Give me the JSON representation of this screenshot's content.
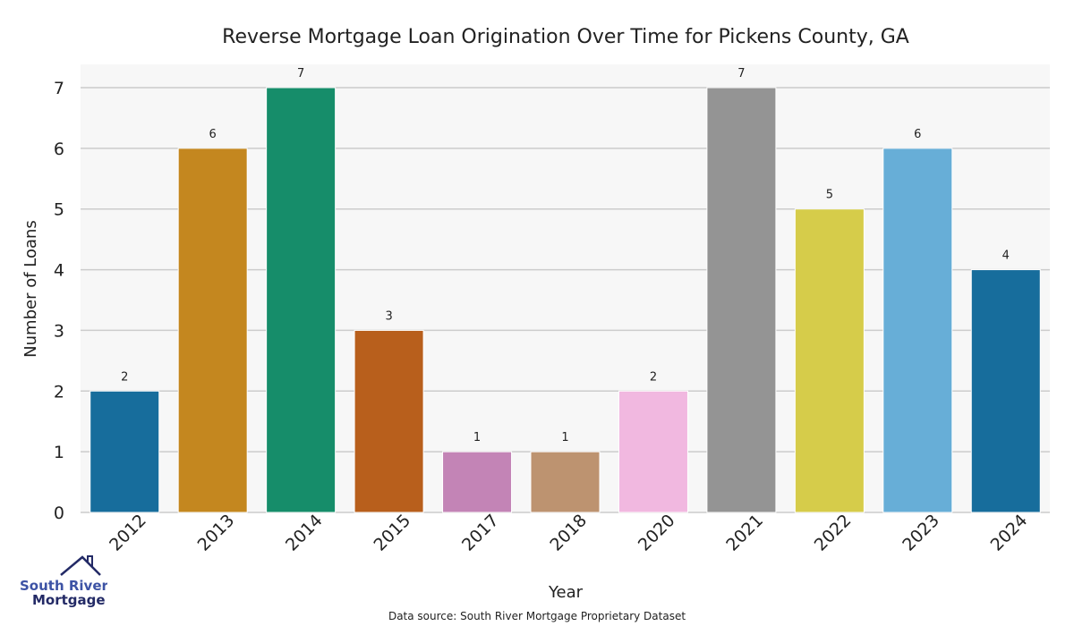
{
  "chart_data": {
    "type": "bar",
    "title": "Reverse Mortgage Loan Origination Over Time for Pickens County, GA",
    "xlabel": "Year",
    "ylabel": "Number of Loans",
    "categories": [
      "2012",
      "2013",
      "2014",
      "2015",
      "2017",
      "2018",
      "2020",
      "2021",
      "2022",
      "2023",
      "2024"
    ],
    "values": [
      2,
      6,
      7,
      3,
      1,
      1,
      2,
      7,
      5,
      6,
      4
    ],
    "colors": [
      "#176d9c",
      "#c4871f",
      "#168d6a",
      "#b85f1c",
      "#c384b6",
      "#bd9370",
      "#f1b8e0",
      "#949494",
      "#d6cc4a",
      "#67aed7",
      "#176d9c"
    ],
    "ylim": [
      0,
      7.4
    ],
    "yticks": [
      0,
      1,
      2,
      3,
      4,
      5,
      6,
      7
    ],
    "grid": true,
    "source": "Data source: South River Mortgage Proprietary Dataset"
  },
  "logo": {
    "line1": "South River",
    "line2": "Mortgage"
  }
}
